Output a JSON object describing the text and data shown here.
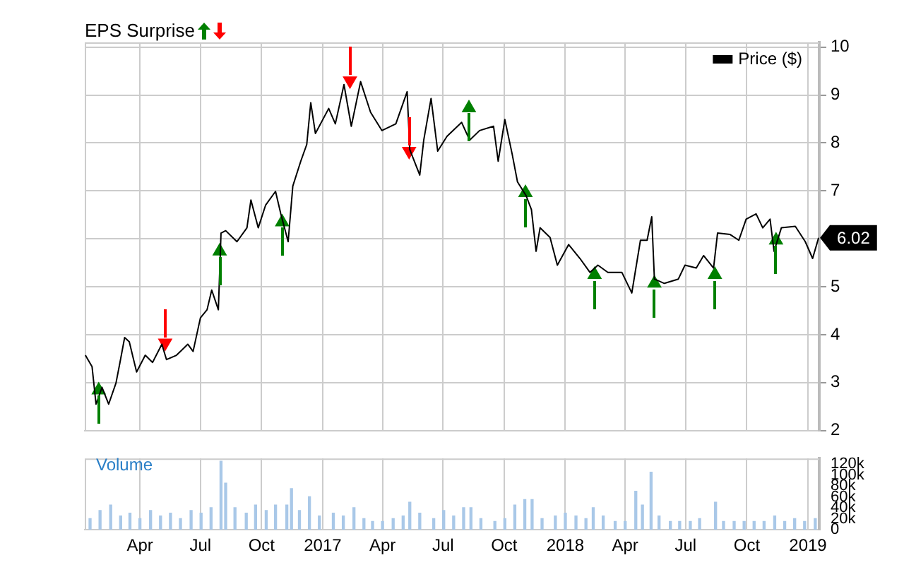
{
  "chart_data": [
    {
      "type": "line",
      "title": "EPS Surprise",
      "legend": "top right",
      "grid": true,
      "tick_labels": "y",
      "xlim": [
        "2016-01-09",
        "2019-01-18"
      ],
      "xticks": [
        {
          "value": "2016-04-01",
          "label": null
        },
        {
          "value": "2016-07-01",
          "label": null
        },
        {
          "value": "2016-10-01",
          "label": null
        },
        {
          "value": "2017-01-01",
          "label": null
        },
        {
          "value": "2017-04-01",
          "label": null
        },
        {
          "value": "2017-07-01",
          "label": null
        },
        {
          "value": "2017-10-01",
          "label": null
        },
        {
          "value": "2018-01-01",
          "label": null
        },
        {
          "value": "2018-04-01",
          "label": null
        },
        {
          "value": "2018-07-01",
          "label": null
        },
        {
          "value": "2018-10-01",
          "label": null
        },
        {
          "value": "2019-01-01",
          "label": null
        }
      ],
      "ylim": [
        2,
        10.1
      ],
      "yticks": [
        2,
        3,
        4,
        5,
        {
          "value": 6,
          "label": null
        },
        7,
        8,
        9,
        10
      ],
      "annotations": [
        {
          "text": "6.02",
          "x": "2019-01-17",
          "y": 6.02
        }
      ],
      "series": [
        {
          "name": "Price ($)",
          "color": "#000000",
          "x": [
            "2016-01-10",
            "2016-01-20",
            "2016-01-26",
            "2016-02-04",
            "2016-02-14",
            "2016-02-25",
            "2016-03-02",
            "2016-03-09",
            "2016-03-16",
            "2016-03-27",
            "2016-04-09",
            "2016-04-20",
            "2016-05-04",
            "2016-05-11",
            "2016-05-26",
            "2016-06-12",
            "2016-06-20",
            "2016-07-01",
            "2016-07-11",
            "2016-07-18",
            "2016-07-28",
            "2016-08-01",
            "2016-08-08",
            "2016-08-25",
            "2016-09-09",
            "2016-09-15",
            "2016-09-26",
            "2016-10-07",
            "2016-10-22",
            "2016-10-30",
            "2016-11-10",
            "2016-11-17",
            "2016-11-29",
            "2016-12-08",
            "2016-12-14",
            "2016-12-21",
            "2017-01-10",
            "2017-01-20",
            "2017-02-02",
            "2017-02-13",
            "2017-02-27",
            "2017-03-14",
            "2017-03-31",
            "2017-04-21",
            "2017-05-08",
            "2017-05-12",
            "2017-05-27",
            "2017-06-02",
            "2017-06-13",
            "2017-06-23",
            "2017-07-07",
            "2017-07-29",
            "2017-08-10",
            "2017-08-25",
            "2017-09-15",
            "2017-09-22",
            "2017-10-02",
            "2017-10-13",
            "2017-10-21",
            "2017-11-03",
            "2017-11-11",
            "2017-11-18",
            "2017-11-24",
            "2017-12-09",
            "2017-12-20",
            "2018-01-06",
            "2018-01-23",
            "2018-02-07",
            "2018-02-19",
            "2018-03-06",
            "2018-03-27",
            "2018-04-11",
            "2018-04-24",
            "2018-05-04",
            "2018-05-11",
            "2018-05-15",
            "2018-05-30",
            "2018-06-20",
            "2018-06-30",
            "2018-07-17",
            "2018-07-28",
            "2018-08-12",
            "2018-08-18",
            "2018-09-06",
            "2018-09-19",
            "2018-09-30",
            "2018-10-15",
            "2018-10-25",
            "2018-11-05",
            "2018-11-11",
            "2018-11-22",
            "2018-12-13",
            "2018-12-28",
            "2019-01-08",
            "2019-01-17"
          ],
          "values": [
            3.57,
            3.33,
            2.55,
            2.9,
            2.55,
            2.99,
            3.42,
            3.94,
            3.85,
            3.22,
            3.57,
            3.42,
            3.8,
            3.48,
            3.57,
            3.8,
            3.65,
            4.35,
            4.52,
            4.93,
            4.52,
            6.12,
            6.17,
            5.94,
            6.23,
            6.81,
            6.23,
            6.7,
            6.99,
            6.52,
            5.94,
            7.1,
            7.62,
            7.97,
            8.84,
            8.2,
            8.72,
            8.4,
            9.22,
            8.35,
            9.28,
            8.64,
            8.26,
            8.4,
            9.07,
            7.86,
            7.33,
            8.06,
            8.93,
            7.83,
            8.14,
            8.43,
            8.06,
            8.26,
            8.35,
            7.62,
            8.49,
            7.77,
            7.19,
            6.9,
            6.61,
            5.74,
            6.23,
            6.03,
            5.45,
            5.88,
            5.59,
            5.3,
            5.45,
            5.3,
            5.3,
            4.87,
            5.97,
            5.97,
            6.46,
            5.16,
            5.07,
            5.16,
            5.45,
            5.39,
            5.65,
            5.39,
            6.12,
            6.09,
            5.97,
            6.41,
            6.52,
            6.23,
            6.41,
            5.74,
            6.23,
            6.26,
            5.94,
            5.59,
            6.02
          ]
        },
        {
          "type": "scatter",
          "marker": "triangle",
          "color": "#008000",
          "x": [
            "2016-01-30",
            "2016-07-30",
            "2016-11-01",
            "2017-08-09",
            "2017-11-02",
            "2018-02-14",
            "2018-05-15",
            "2018-08-14",
            "2018-11-14"
          ],
          "values": [
            2.84,
            5.74,
            6.35,
            8.73,
            6.96,
            5.25,
            5.07,
            5.25,
            5.97
          ]
        },
        {
          "type": "scatter",
          "marker": "triangle",
          "color": "#ff0000",
          "x": [
            "2016-05-09",
            "2017-02-11",
            "2017-05-11"
          ],
          "values": [
            3.83,
            9.3,
            7.83
          ]
        }
      ]
    },
    {
      "type": "bar",
      "title": "Volume",
      "grid": "x",
      "xlim": [
        "2016-01-09",
        "2019-01-18"
      ],
      "xticks": [
        {
          "value": "2016-04-01",
          "label": "Apr"
        },
        {
          "value": "2016-07-01",
          "label": "Jul"
        },
        {
          "value": "2016-10-01",
          "label": "Oct"
        },
        {
          "value": "2017-01-01",
          "label": "2017"
        },
        {
          "value": "2017-04-01",
          "label": "Apr"
        },
        {
          "value": "2017-07-01",
          "label": "Jul"
        },
        {
          "value": "2017-10-01",
          "label": "Oct"
        },
        {
          "value": "2018-01-01",
          "label": "2018"
        },
        {
          "value": "2018-04-01",
          "label": "Apr"
        },
        {
          "value": "2018-07-01",
          "label": "Jul"
        },
        {
          "value": "2018-10-01",
          "label": "Oct"
        },
        {
          "value": "2019-01-01",
          "label": "2019"
        }
      ],
      "ylim": [
        0,
        130000
      ],
      "yticks": [
        0,
        {
          "value": 20000,
          "label": "20k"
        },
        {
          "value": 40000,
          "label": "40k"
        },
        {
          "value": 60000,
          "label": "60k"
        },
        {
          "value": 80000,
          "label": "80k"
        },
        {
          "value": 100000,
          "label": "100k"
        },
        {
          "value": 120000,
          "label": "120k"
        }
      ],
      "color": "#a9c8e8",
      "x": [
        "2016-01-17",
        "2016-02-01",
        "2016-02-17",
        "2016-03-03",
        "2016-03-17",
        "2016-04-01",
        "2016-04-17",
        "2016-05-02",
        "2016-05-17",
        "2016-06-01",
        "2016-06-17",
        "2016-07-02",
        "2016-07-17",
        "2016-08-01",
        "2016-08-08",
        "2016-08-22",
        "2016-09-08",
        "2016-09-22",
        "2016-10-08",
        "2016-10-22",
        "2016-11-08",
        "2016-11-15",
        "2016-11-27",
        "2016-12-12",
        "2016-12-27",
        "2017-01-17",
        "2017-02-01",
        "2017-02-17",
        "2017-03-04",
        "2017-03-17",
        "2017-04-01",
        "2017-04-17",
        "2017-05-02",
        "2017-05-12",
        "2017-05-27",
        "2017-06-17",
        "2017-07-02",
        "2017-07-17",
        "2017-08-01",
        "2017-08-12",
        "2017-08-27",
        "2017-09-17",
        "2017-10-02",
        "2017-10-17",
        "2017-11-01",
        "2017-11-12",
        "2017-11-27",
        "2017-12-17",
        "2018-01-01",
        "2018-01-17",
        "2018-02-01",
        "2018-02-12",
        "2018-02-27",
        "2018-03-17",
        "2018-04-01",
        "2018-04-17",
        "2018-04-27",
        "2018-05-10",
        "2018-05-22",
        "2018-06-08",
        "2018-06-22",
        "2018-07-08",
        "2018-07-22",
        "2018-08-15",
        "2018-08-27",
        "2018-09-12",
        "2018-09-27",
        "2018-10-12",
        "2018-10-27",
        "2018-11-12",
        "2018-11-27",
        "2018-12-12",
        "2018-12-27",
        "2019-01-12"
      ],
      "values": [
        20000,
        35000,
        45000,
        25000,
        30000,
        20000,
        35000,
        25000,
        30000,
        20000,
        35000,
        30000,
        40000,
        125000,
        85000,
        40000,
        30000,
        45000,
        35000,
        45000,
        45000,
        75000,
        35000,
        60000,
        25000,
        30000,
        25000,
        40000,
        20000,
        15000,
        15000,
        20000,
        25000,
        50000,
        30000,
        20000,
        35000,
        25000,
        40000,
        40000,
        20000,
        15000,
        20000,
        45000,
        55000,
        55000,
        20000,
        25000,
        30000,
        25000,
        20000,
        40000,
        25000,
        15000,
        15000,
        70000,
        45000,
        105000,
        25000,
        15000,
        15000,
        15000,
        20000,
        50000,
        15000,
        15000,
        15000,
        15000,
        15000,
        25000,
        15000,
        20000,
        15000,
        20000
      ]
    }
  ]
}
